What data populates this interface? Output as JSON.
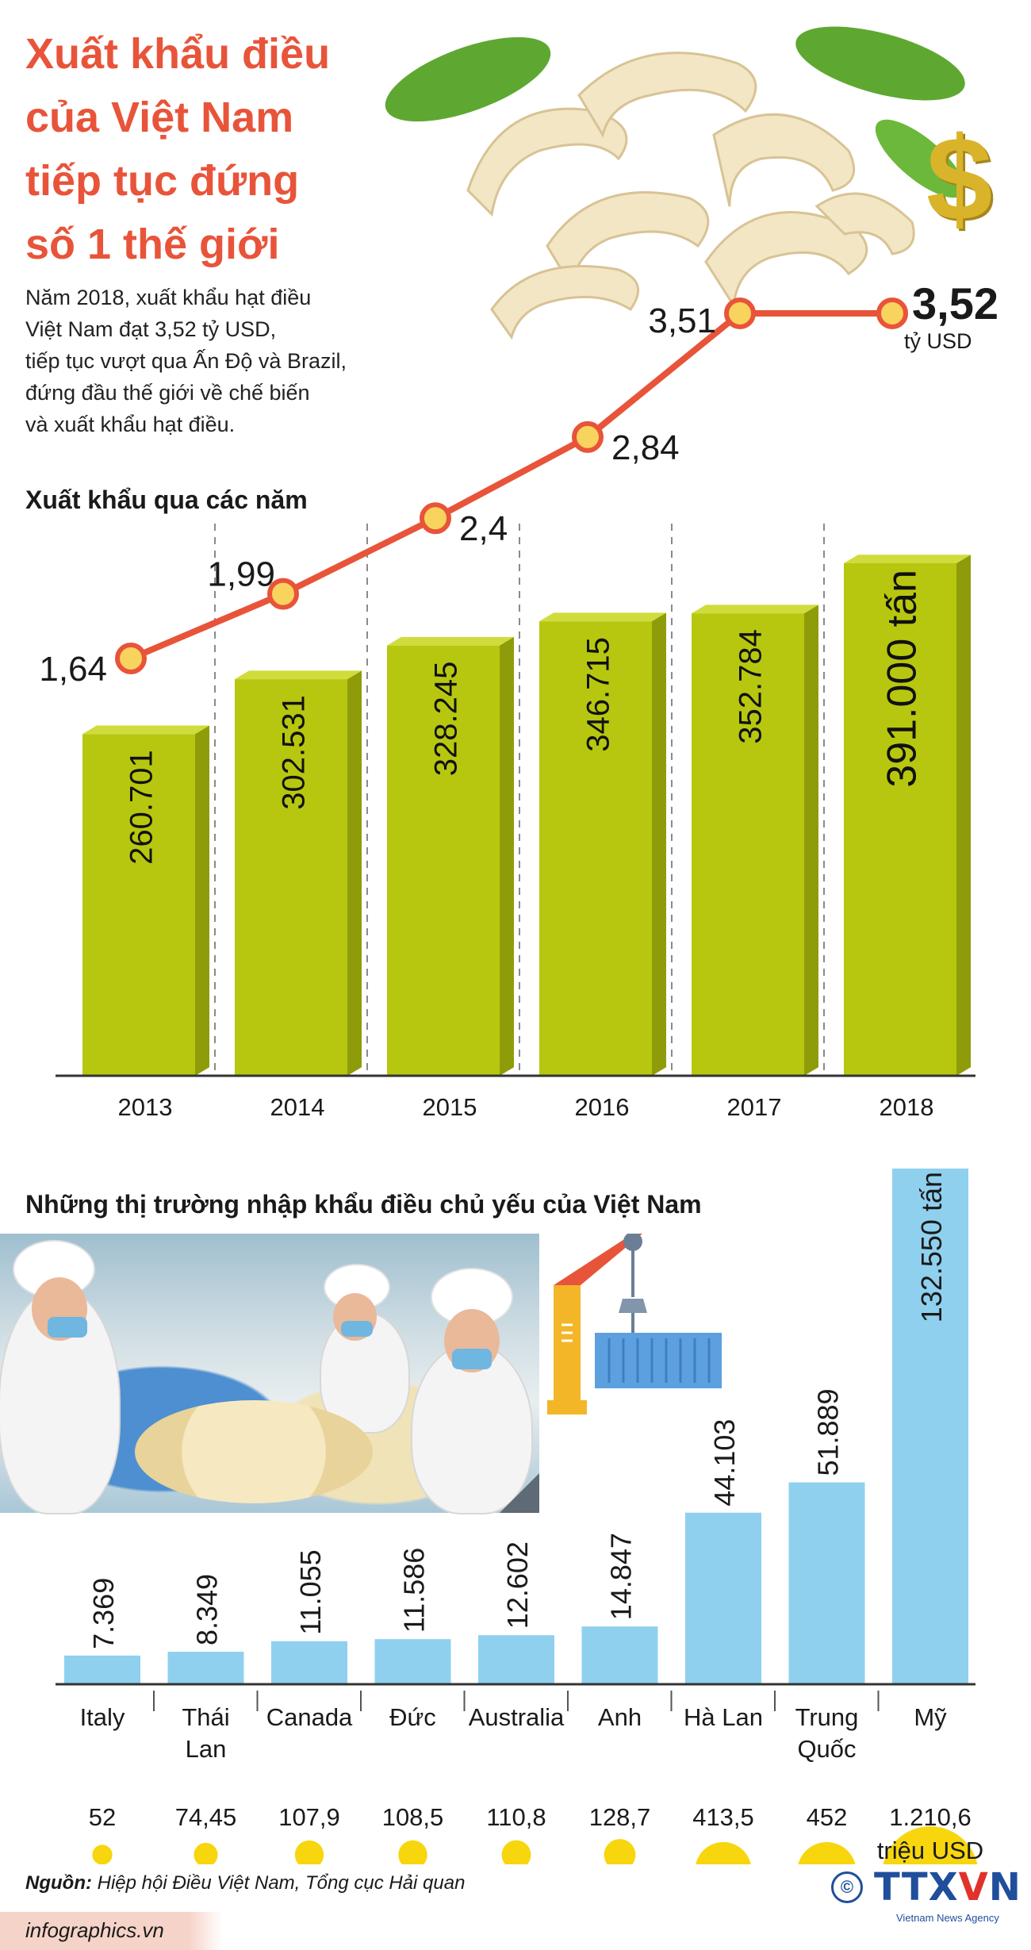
{
  "header": {
    "title_lines": [
      "Xuất khẩu điều",
      "của Việt Nam",
      "tiếp tục đứng",
      "số 1 thế giới"
    ],
    "intro_lines": [
      "Năm 2018, xuất khẩu hạt điều",
      "Việt Nam đạt 3,52 tỷ USD,",
      "tiếp tục vượt qua Ấn Độ và Brazil,",
      "đứng đầu thế giới về chế biến",
      "và xuất khẩu hạt điều."
    ]
  },
  "highlight": {
    "value": "3,52",
    "unit": "tỷ USD",
    "icon": "dollar-icon"
  },
  "section1": {
    "title": "Xuất khẩu qua các năm"
  },
  "section2": {
    "title": "Những thị trường nhập khẩu điều chủ yếu của Việt Nam"
  },
  "colors": {
    "accent": "#e8543a",
    "bar_green": "#b7c70f",
    "bar_green_side": "#8f9c0a",
    "bar_blue": "#8fd0ef",
    "circle_yellow": "#f7d400",
    "point_fill": "#f8d35e"
  },
  "chart_data": [
    {
      "type": "bar",
      "categories": [
        "2013",
        "2014",
        "2015",
        "2016",
        "2017",
        "2018"
      ],
      "series": [
        {
          "values": [
            260701,
            302531,
            328245,
            346715,
            352784,
            391000
          ],
          "labels": [
            "260.701",
            "302.531",
            "328.245",
            "346.715",
            "352.784",
            "391.000 tấn"
          ]
        },
        {
          "type": "line",
          "values": [
            1.64,
            1.99,
            2.4,
            2.84,
            3.51,
            3.52
          ],
          "labels": [
            "1,64",
            "1,99",
            "2,4",
            "2,84",
            "3,51",
            ""
          ]
        }
      ]
    },
    {
      "type": "bar",
      "categories": [
        "Italy",
        "Thái Lan",
        "Canada",
        "Đức",
        "Australia",
        "Anh",
        "Hà Lan",
        "Trung Quốc",
        "Mỹ"
      ],
      "series": [
        {
          "values": [
            7369,
            8349,
            11055,
            11586,
            12602,
            14847,
            44103,
            51889,
            132550
          ],
          "labels": [
            "7.369",
            "8.349",
            "11.055",
            "11.586",
            "12.602",
            "14.847",
            "44.103",
            "51.889",
            "132.550 tấn"
          ]
        },
        {
          "type": "bubble",
          "values": [
            52,
            74.45,
            107.9,
            108.5,
            110.8,
            128.7,
            413.5,
            452,
            1210.6
          ],
          "labels": [
            "52",
            "74,45",
            "107,9",
            "108,5",
            "110,8",
            "128,7",
            "413,5",
            "452",
            "1.210,6"
          ],
          "unit": "triệu USD"
        }
      ]
    }
  ],
  "source": {
    "label": "Nguồn:",
    "text": "Hiệp hội Điều Việt Nam, Tổng cục Hải quan"
  },
  "footer": {
    "site": "infographics.vn",
    "logo_left": "TTX",
    "logo_mid": "V",
    "logo_right": "N",
    "logo_sub": "Vietnam News Agency",
    "copyright": "©"
  }
}
